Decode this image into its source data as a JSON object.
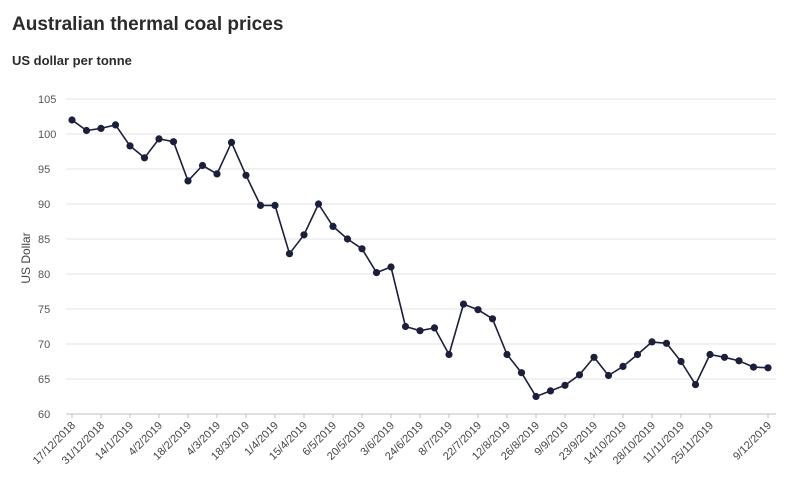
{
  "chart_data": {
    "type": "line",
    "title": "Australian thermal coal prices",
    "subtitle": "US dollar per tonne",
    "ylabel": "US Dollar",
    "xlabel": "",
    "ylim": [
      60,
      105
    ],
    "yticks": [
      60,
      65,
      70,
      75,
      80,
      85,
      90,
      95,
      100,
      105
    ],
    "grid": true,
    "line_color": "#1b1f3b",
    "xtick_labels": [
      "17/12/2018",
      "31/12/2018",
      "14/1/2019",
      "4/2/2019",
      "18/2/2019",
      "4/3/2019",
      "18/3/2019",
      "1/4/2019",
      "15/4/2019",
      "6/5/2019",
      "20/5/2019",
      "3/6/2019",
      "24/6/2019",
      "8/7/2019",
      "22/7/2019",
      "12/8/2019",
      "26/8/2019",
      "9/9/2019",
      "23/9/2019",
      "14/10/2019",
      "28/10/2019",
      "11/11/2019",
      "25/11/2019",
      "9/12/2019"
    ],
    "xtick_indices": [
      0,
      2,
      4,
      6,
      8,
      10,
      12,
      14,
      16,
      18,
      20,
      22,
      24,
      26,
      28,
      30,
      32,
      34,
      36,
      38,
      40,
      42,
      44,
      48
    ],
    "series": [
      {
        "values": [
          102.0,
          100.5,
          100.8,
          101.3,
          98.3,
          96.6,
          99.3,
          98.9,
          93.3,
          95.5,
          94.3,
          98.8,
          94.1,
          89.8,
          89.8,
          82.9,
          85.6,
          90.0,
          86.8,
          85.0,
          83.6,
          80.2,
          81.0,
          72.5,
          71.9,
          72.3,
          68.5,
          75.7,
          74.9,
          73.6,
          68.5,
          65.9,
          62.5,
          63.3,
          64.1,
          65.6,
          68.1,
          65.5,
          66.8,
          68.5,
          70.3,
          70.1,
          67.5,
          64.2,
          68.5,
          68.1,
          67.6,
          66.7,
          66.6
        ]
      }
    ]
  }
}
